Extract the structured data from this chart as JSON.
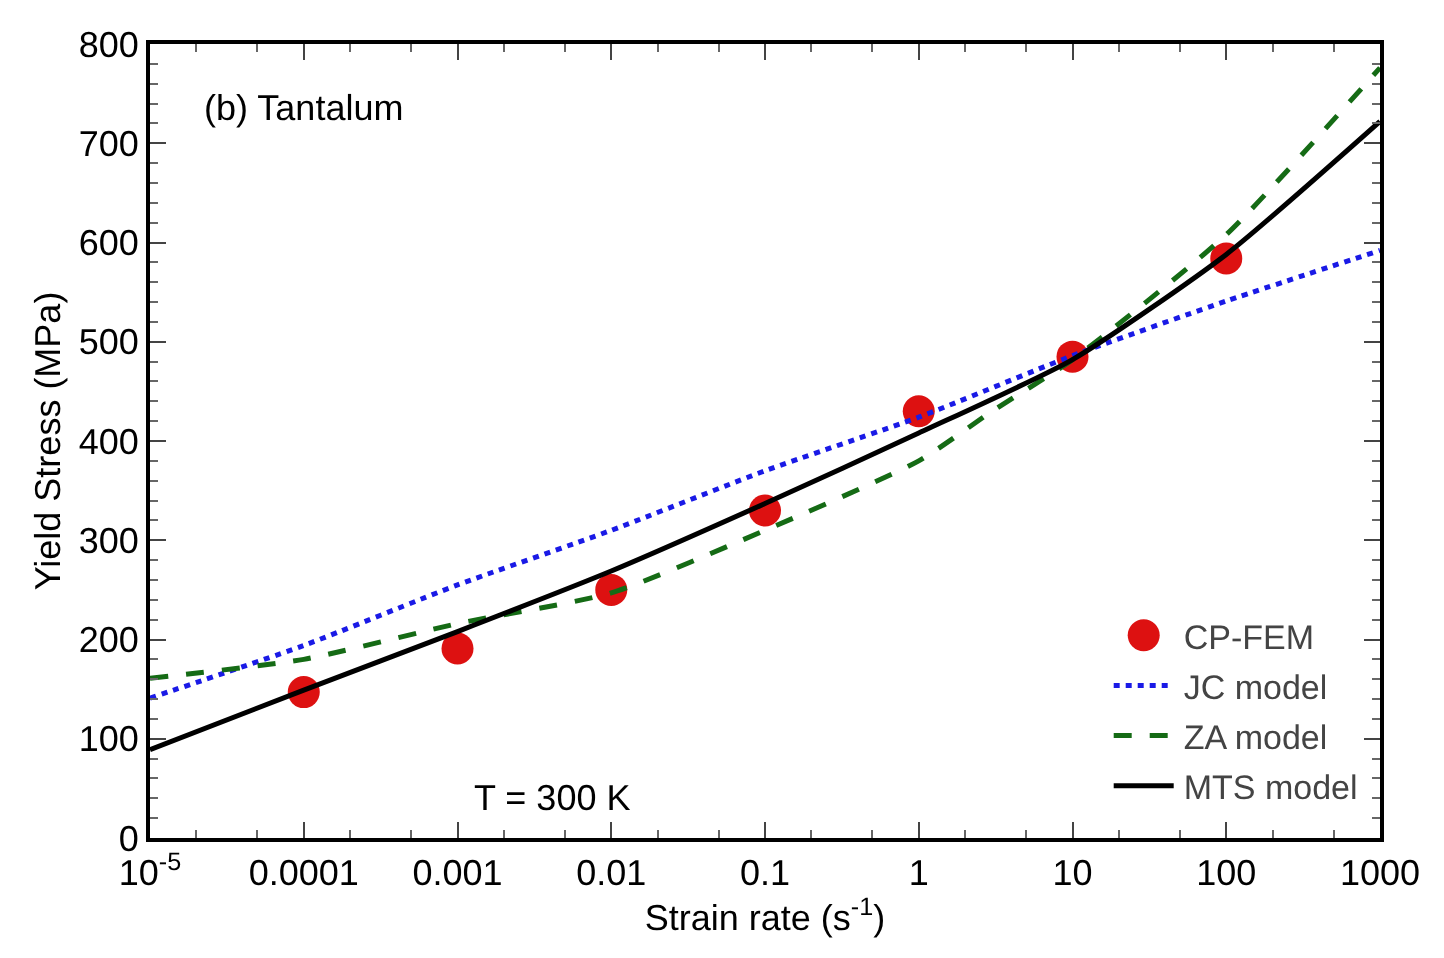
{
  "chart_data": {
    "type": "line",
    "xlabel": "Strain rate (s$^{-1}$)",
    "ylabel": "Yield Stress (MPa)",
    "log": "x",
    "xlim": [
      1e-05,
      1000
    ],
    "xticks": [
      {
        "value": 1e-05,
        "label": "10$^{-5}$"
      },
      0.0001,
      0.001,
      0.01,
      0.1,
      1,
      10,
      100,
      1000
    ],
    "ylim": [
      0,
      800
    ],
    "yticks": [
      0,
      100,
      200,
      300,
      400,
      500,
      600,
      700,
      800
    ],
    "grid": false,
    "legend": "bottom right",
    "annotations": [
      "(b) Tantalum",
      "T = 300 K"
    ],
    "series": [
      {
        "name": "CP-FEM",
        "type": "scatter",
        "marker": "circle",
        "color": "#dd1111",
        "x": [
          0.0001,
          0.001,
          0.01,
          0.1,
          1,
          10,
          100
        ],
        "values": [
          147,
          191,
          250,
          330,
          430,
          485,
          584
        ]
      },
      {
        "name": "JC model",
        "type": "line",
        "line_style": "dotted",
        "color": "#1a1ae6",
        "x": [
          1e-05,
          0.0001,
          0.001,
          0.01,
          0.1,
          1,
          10,
          100,
          1000
        ],
        "values": [
          141,
          194,
          255,
          310,
          370,
          424,
          486,
          541,
          592
        ]
      },
      {
        "name": "ZA model",
        "type": "line",
        "line_style": "dashed",
        "color": "#156b15",
        "x": [
          1e-05,
          0.0001,
          0.001,
          0.01,
          0.1,
          1,
          3,
          10,
          100,
          1000
        ],
        "values": [
          161,
          180,
          216,
          247,
          310,
          380,
          430,
          482,
          608,
          776
        ]
      },
      {
        "name": "MTS model",
        "type": "line",
        "line_style": "solid",
        "color": "#000000",
        "x": [
          1e-05,
          0.0001,
          0.001,
          0.01,
          0.1,
          1,
          10,
          100,
          1000
        ],
        "values": [
          89,
          149,
          208,
          269,
          337,
          408,
          482,
          588,
          722
        ]
      }
    ]
  }
}
